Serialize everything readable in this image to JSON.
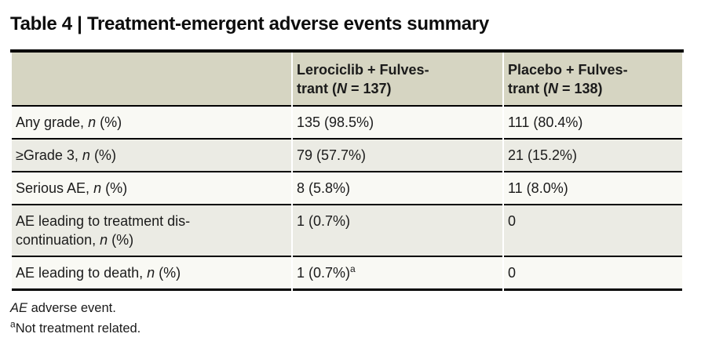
{
  "page_title": "Table 4 | Treatment-emergent adverse events summary",
  "table": {
    "header": {
      "row_label_col": "",
      "col1": [
        {
          "text": "Lerociclib + Fulves-"
        },
        {
          "br": true
        },
        {
          "text": "trant ("
        },
        {
          "text": "N",
          "italic": true
        },
        {
          "text": " = 137)"
        }
      ],
      "col2": [
        {
          "text": "Placebo + Fulves-"
        },
        {
          "br": true
        },
        {
          "text": "trant ("
        },
        {
          "text": "N",
          "italic": true
        },
        {
          "text": " = 138)"
        }
      ]
    },
    "rows": [
      {
        "label": [
          {
            "text": "Any grade, "
          },
          {
            "text": "n",
            "italic": true
          },
          {
            "text": " (%)"
          }
        ],
        "col1": [
          {
            "text": "135 (98.5%)"
          }
        ],
        "col2": [
          {
            "text": "111 (80.4%)"
          }
        ],
        "shaded": false
      },
      {
        "label": [
          {
            "text": "≥Grade 3, "
          },
          {
            "text": "n",
            "italic": true
          },
          {
            "text": " (%)"
          }
        ],
        "col1": [
          {
            "text": "79 (57.7%)"
          }
        ],
        "col2": [
          {
            "text": "21 (15.2%)"
          }
        ],
        "shaded": true
      },
      {
        "label": [
          {
            "text": "Serious AE, "
          },
          {
            "text": "n",
            "italic": true
          },
          {
            "text": " (%)"
          }
        ],
        "col1": [
          {
            "text": "8 (5.8%)"
          }
        ],
        "col2": [
          {
            "text": "11 (8.0%)"
          }
        ],
        "shaded": false
      },
      {
        "label": [
          {
            "text": "AE leading to treatment dis-"
          },
          {
            "br": true
          },
          {
            "text": "continuation, "
          },
          {
            "text": "n",
            "italic": true
          },
          {
            "text": " (%)"
          }
        ],
        "col1": [
          {
            "text": "1 (0.7%)"
          }
        ],
        "col2": [
          {
            "text": "0"
          }
        ],
        "shaded": true
      },
      {
        "label": [
          {
            "text": "AE leading to death, "
          },
          {
            "text": "n",
            "italic": true
          },
          {
            "text": " (%)"
          }
        ],
        "col1": [
          {
            "text": "1 (0.7%)"
          },
          {
            "text": "a",
            "sup": true
          }
        ],
        "col2": [
          {
            "text": "0"
          }
        ],
        "shaded": false
      }
    ],
    "footnotes": [
      [
        {
          "text": "AE",
          "italic": true
        },
        {
          "text": " adverse event."
        }
      ],
      [
        {
          "text": "a",
          "sup": true
        },
        {
          "text": "Not treatment related."
        }
      ]
    ]
  },
  "colors": {
    "header_bg": "#d6d5c2",
    "shaded_row_bg": "#ebebe4",
    "unshaded_row_bg": "#f9f9f4",
    "rule_color": "#000000",
    "text_color": "#1b1b1b"
  }
}
